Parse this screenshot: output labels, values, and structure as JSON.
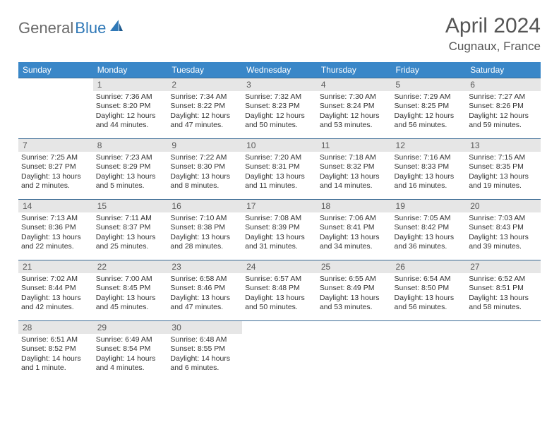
{
  "brand": {
    "part1": "General",
    "part2": "Blue"
  },
  "title": "April 2024",
  "location": "Cugnaux, France",
  "colors": {
    "header_bg": "#3a87c8",
    "row_border": "#3a6a94",
    "daynum_bg": "#e6e6e6",
    "logo_gray": "#6b6b6b",
    "logo_blue": "#2f78b7"
  },
  "dow": [
    "Sunday",
    "Monday",
    "Tuesday",
    "Wednesday",
    "Thursday",
    "Friday",
    "Saturday"
  ],
  "weeks": [
    [
      {
        "n": "",
        "lines": []
      },
      {
        "n": "1",
        "lines": [
          "Sunrise: 7:36 AM",
          "Sunset: 8:20 PM",
          "Daylight: 12 hours",
          "and 44 minutes."
        ]
      },
      {
        "n": "2",
        "lines": [
          "Sunrise: 7:34 AM",
          "Sunset: 8:22 PM",
          "Daylight: 12 hours",
          "and 47 minutes."
        ]
      },
      {
        "n": "3",
        "lines": [
          "Sunrise: 7:32 AM",
          "Sunset: 8:23 PM",
          "Daylight: 12 hours",
          "and 50 minutes."
        ]
      },
      {
        "n": "4",
        "lines": [
          "Sunrise: 7:30 AM",
          "Sunset: 8:24 PM",
          "Daylight: 12 hours",
          "and 53 minutes."
        ]
      },
      {
        "n": "5",
        "lines": [
          "Sunrise: 7:29 AM",
          "Sunset: 8:25 PM",
          "Daylight: 12 hours",
          "and 56 minutes."
        ]
      },
      {
        "n": "6",
        "lines": [
          "Sunrise: 7:27 AM",
          "Sunset: 8:26 PM",
          "Daylight: 12 hours",
          "and 59 minutes."
        ]
      }
    ],
    [
      {
        "n": "7",
        "lines": [
          "Sunrise: 7:25 AM",
          "Sunset: 8:27 PM",
          "Daylight: 13 hours",
          "and 2 minutes."
        ]
      },
      {
        "n": "8",
        "lines": [
          "Sunrise: 7:23 AM",
          "Sunset: 8:29 PM",
          "Daylight: 13 hours",
          "and 5 minutes."
        ]
      },
      {
        "n": "9",
        "lines": [
          "Sunrise: 7:22 AM",
          "Sunset: 8:30 PM",
          "Daylight: 13 hours",
          "and 8 minutes."
        ]
      },
      {
        "n": "10",
        "lines": [
          "Sunrise: 7:20 AM",
          "Sunset: 8:31 PM",
          "Daylight: 13 hours",
          "and 11 minutes."
        ]
      },
      {
        "n": "11",
        "lines": [
          "Sunrise: 7:18 AM",
          "Sunset: 8:32 PM",
          "Daylight: 13 hours",
          "and 14 minutes."
        ]
      },
      {
        "n": "12",
        "lines": [
          "Sunrise: 7:16 AM",
          "Sunset: 8:33 PM",
          "Daylight: 13 hours",
          "and 16 minutes."
        ]
      },
      {
        "n": "13",
        "lines": [
          "Sunrise: 7:15 AM",
          "Sunset: 8:35 PM",
          "Daylight: 13 hours",
          "and 19 minutes."
        ]
      }
    ],
    [
      {
        "n": "14",
        "lines": [
          "Sunrise: 7:13 AM",
          "Sunset: 8:36 PM",
          "Daylight: 13 hours",
          "and 22 minutes."
        ]
      },
      {
        "n": "15",
        "lines": [
          "Sunrise: 7:11 AM",
          "Sunset: 8:37 PM",
          "Daylight: 13 hours",
          "and 25 minutes."
        ]
      },
      {
        "n": "16",
        "lines": [
          "Sunrise: 7:10 AM",
          "Sunset: 8:38 PM",
          "Daylight: 13 hours",
          "and 28 minutes."
        ]
      },
      {
        "n": "17",
        "lines": [
          "Sunrise: 7:08 AM",
          "Sunset: 8:39 PM",
          "Daylight: 13 hours",
          "and 31 minutes."
        ]
      },
      {
        "n": "18",
        "lines": [
          "Sunrise: 7:06 AM",
          "Sunset: 8:41 PM",
          "Daylight: 13 hours",
          "and 34 minutes."
        ]
      },
      {
        "n": "19",
        "lines": [
          "Sunrise: 7:05 AM",
          "Sunset: 8:42 PM",
          "Daylight: 13 hours",
          "and 36 minutes."
        ]
      },
      {
        "n": "20",
        "lines": [
          "Sunrise: 7:03 AM",
          "Sunset: 8:43 PM",
          "Daylight: 13 hours",
          "and 39 minutes."
        ]
      }
    ],
    [
      {
        "n": "21",
        "lines": [
          "Sunrise: 7:02 AM",
          "Sunset: 8:44 PM",
          "Daylight: 13 hours",
          "and 42 minutes."
        ]
      },
      {
        "n": "22",
        "lines": [
          "Sunrise: 7:00 AM",
          "Sunset: 8:45 PM",
          "Daylight: 13 hours",
          "and 45 minutes."
        ]
      },
      {
        "n": "23",
        "lines": [
          "Sunrise: 6:58 AM",
          "Sunset: 8:46 PM",
          "Daylight: 13 hours",
          "and 47 minutes."
        ]
      },
      {
        "n": "24",
        "lines": [
          "Sunrise: 6:57 AM",
          "Sunset: 8:48 PM",
          "Daylight: 13 hours",
          "and 50 minutes."
        ]
      },
      {
        "n": "25",
        "lines": [
          "Sunrise: 6:55 AM",
          "Sunset: 8:49 PM",
          "Daylight: 13 hours",
          "and 53 minutes."
        ]
      },
      {
        "n": "26",
        "lines": [
          "Sunrise: 6:54 AM",
          "Sunset: 8:50 PM",
          "Daylight: 13 hours",
          "and 56 minutes."
        ]
      },
      {
        "n": "27",
        "lines": [
          "Sunrise: 6:52 AM",
          "Sunset: 8:51 PM",
          "Daylight: 13 hours",
          "and 58 minutes."
        ]
      }
    ],
    [
      {
        "n": "28",
        "lines": [
          "Sunrise: 6:51 AM",
          "Sunset: 8:52 PM",
          "Daylight: 14 hours",
          "and 1 minute."
        ]
      },
      {
        "n": "29",
        "lines": [
          "Sunrise: 6:49 AM",
          "Sunset: 8:54 PM",
          "Daylight: 14 hours",
          "and 4 minutes."
        ]
      },
      {
        "n": "30",
        "lines": [
          "Sunrise: 6:48 AM",
          "Sunset: 8:55 PM",
          "Daylight: 14 hours",
          "and 6 minutes."
        ]
      },
      {
        "n": "",
        "lines": []
      },
      {
        "n": "",
        "lines": []
      },
      {
        "n": "",
        "lines": []
      },
      {
        "n": "",
        "lines": []
      }
    ]
  ]
}
